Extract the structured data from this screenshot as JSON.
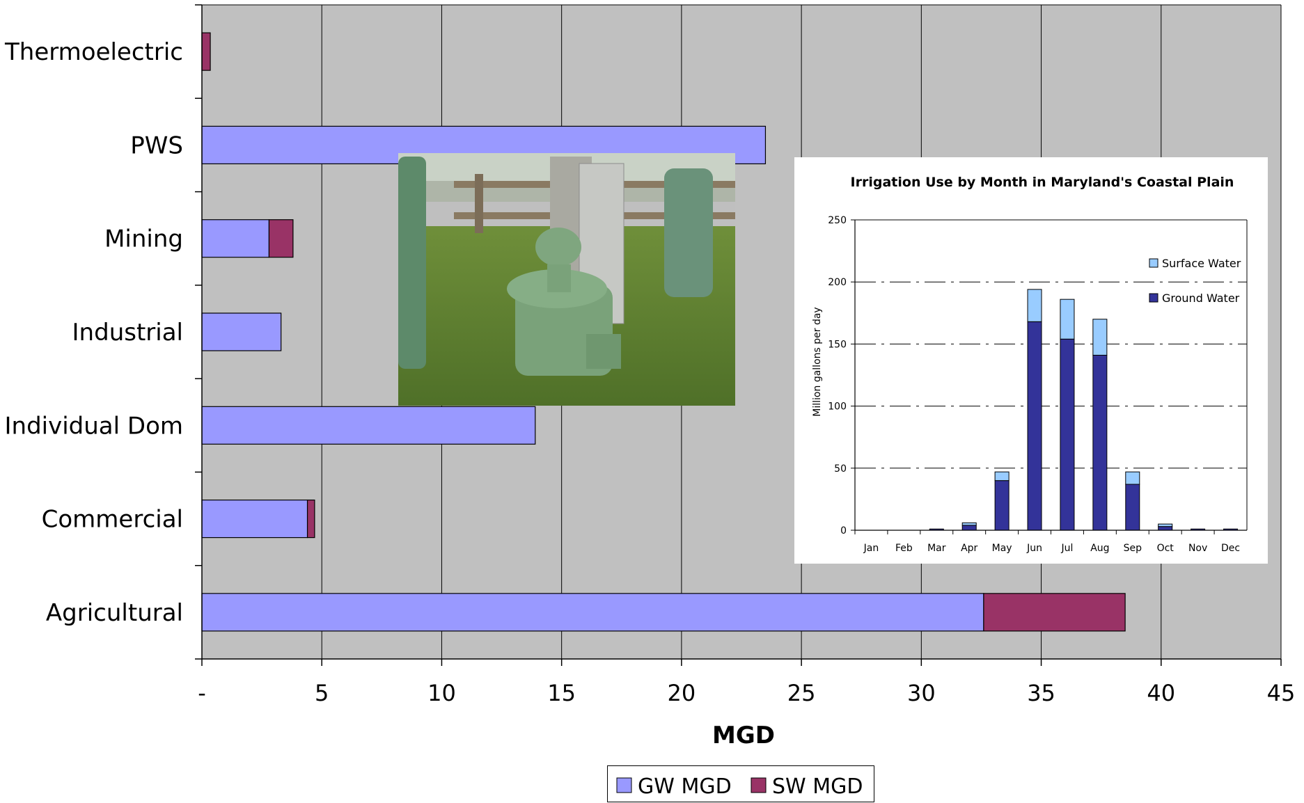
{
  "chart_data": [
    {
      "type": "bar",
      "orientation": "horizontal",
      "stacked": true,
      "categories": [
        "Thermoelectric",
        "PWS",
        "Mining",
        "Industrial",
        "Individual Dom",
        "Commercial",
        "Agricultural"
      ],
      "series": [
        {
          "name": "GW MGD",
          "values": [
            0,
            23.5,
            2.8,
            3.3,
            13.9,
            4.4,
            32.6
          ],
          "color": "#9999ff"
        },
        {
          "name": "SW MGD",
          "values": [
            0.35,
            0,
            1.0,
            0,
            0,
            0.3,
            5.9
          ],
          "color": "#993366"
        }
      ],
      "xlabel": "MGD",
      "xlim": [
        0,
        45
      ],
      "xticks": [
        "-",
        "5",
        "10",
        "15",
        "20",
        "25",
        "30",
        "35",
        "40",
        "45"
      ],
      "grid": true,
      "legend_position": "bottom",
      "plot_background": "#c0c0c0"
    },
    {
      "type": "bar",
      "stacked": true,
      "title": "Irrigation Use by Month in Maryland's Coastal Plain",
      "ylabel": "Million gallons per day",
      "categories": [
        "Jan",
        "Feb",
        "Mar",
        "Apr",
        "May",
        "Jun",
        "Jul",
        "Aug",
        "Sep",
        "Oct",
        "Nov",
        "Dec"
      ],
      "series": [
        {
          "name": "Ground Water",
          "values": [
            0,
            0,
            1,
            4,
            40,
            168,
            154,
            141,
            37,
            3,
            1,
            1
          ],
          "color": "#333399"
        },
        {
          "name": "Surface Water",
          "values": [
            0,
            0,
            0,
            2,
            7,
            26,
            32,
            29,
            10,
            2,
            0,
            0
          ],
          "color": "#99ccff"
        }
      ],
      "ylim": [
        0,
        250
      ],
      "yticks": [
        "0",
        "50",
        "100",
        "150",
        "200",
        "250"
      ],
      "grid": true,
      "legend_position": "top-right"
    }
  ],
  "photo": {
    "subject": "green wellhead among wooden posts"
  }
}
